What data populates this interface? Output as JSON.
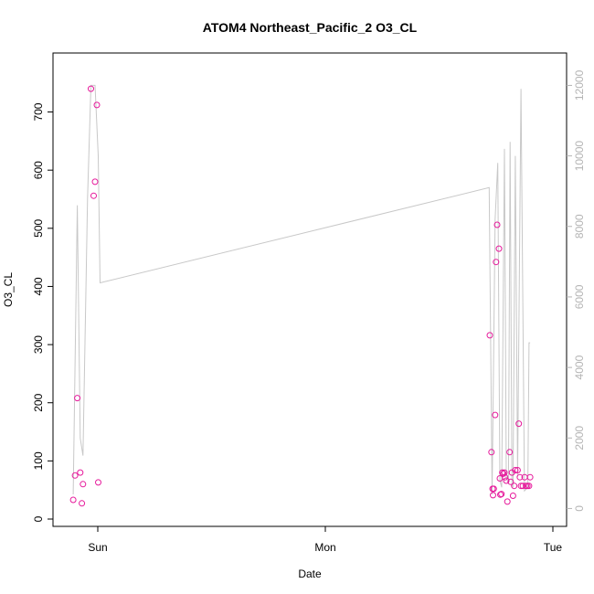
{
  "chart_data": {
    "type": "scatter",
    "title": "ATOM4 Northeast_Pacific_2 O3_CL",
    "xlabel": "Date",
    "ylabel": "O3_CL",
    "x_ticks": [
      {
        "label": "Sun",
        "day": 0
      },
      {
        "label": "Mon",
        "day": 1
      },
      {
        "label": "Tue",
        "day": 2
      }
    ],
    "x_range_days": [
      -0.1,
      2.03
    ],
    "ylim": [
      0,
      770
    ],
    "y_ticks": [
      0,
      100,
      200,
      300,
      400,
      500,
      600,
      700
    ],
    "y2lim": [
      -300,
      12400
    ],
    "y2_ticks": [
      0,
      2000,
      4000,
      6000,
      8000,
      10000,
      12000
    ],
    "colors": {
      "points": "#e6199b",
      "line": "#c8c8c8",
      "axis": "#000000",
      "right_axis": "#b4b4b4"
    },
    "series": [
      {
        "kind": "points",
        "axis": "left",
        "x": [
          -0.108,
          -0.1,
          -0.09,
          -0.077,
          -0.07,
          -0.065,
          -0.03,
          -0.018,
          -0.012,
          -0.004,
          0.002,
          1.723,
          1.73,
          1.735,
          1.737,
          1.74,
          1.746,
          1.75,
          1.755,
          1.763,
          1.767,
          1.769,
          1.774,
          1.778,
          1.782,
          1.787,
          1.79,
          1.795,
          1.8,
          1.81,
          1.815,
          1.82,
          1.825,
          1.83,
          1.835,
          1.845,
          1.85,
          1.855,
          1.86,
          1.868,
          1.876,
          1.882,
          1.888,
          1.895,
          1.9
        ],
        "y": [
          33,
          75,
          208,
          80,
          27,
          60,
          740,
          556,
          580,
          712,
          63,
          316,
          115,
          52,
          41,
          52,
          179,
          442,
          506,
          465,
          70,
          42,
          43,
          80,
          78,
          80,
          72,
          66,
          30,
          115,
          64,
          80,
          40,
          57,
          84,
          84,
          164,
          72,
          57,
          57,
          72,
          57,
          57,
          57,
          72
        ]
      },
      {
        "kind": "line",
        "axis": "right",
        "x": [
          -0.108,
          -0.09,
          -0.077,
          -0.065,
          -0.045,
          -0.03,
          -0.012,
          0.002,
          0.01,
          1.72,
          1.733,
          1.746,
          1.758,
          1.767,
          1.775,
          1.787,
          1.795,
          1.805,
          1.812,
          1.82,
          1.825,
          1.835,
          1.845,
          1.86,
          1.875,
          1.89,
          1.895,
          1.9
        ],
        "y": [
          400,
          8600,
          2000,
          1500,
          8800,
          12000,
          12000,
          10000,
          6400,
          9100,
          400,
          8200,
          9800,
          800,
          600,
          10200,
          900,
          700,
          10400,
          700,
          600,
          10000,
          900,
          11900,
          500,
          600,
          4700,
          4700
        ]
      }
    ]
  }
}
